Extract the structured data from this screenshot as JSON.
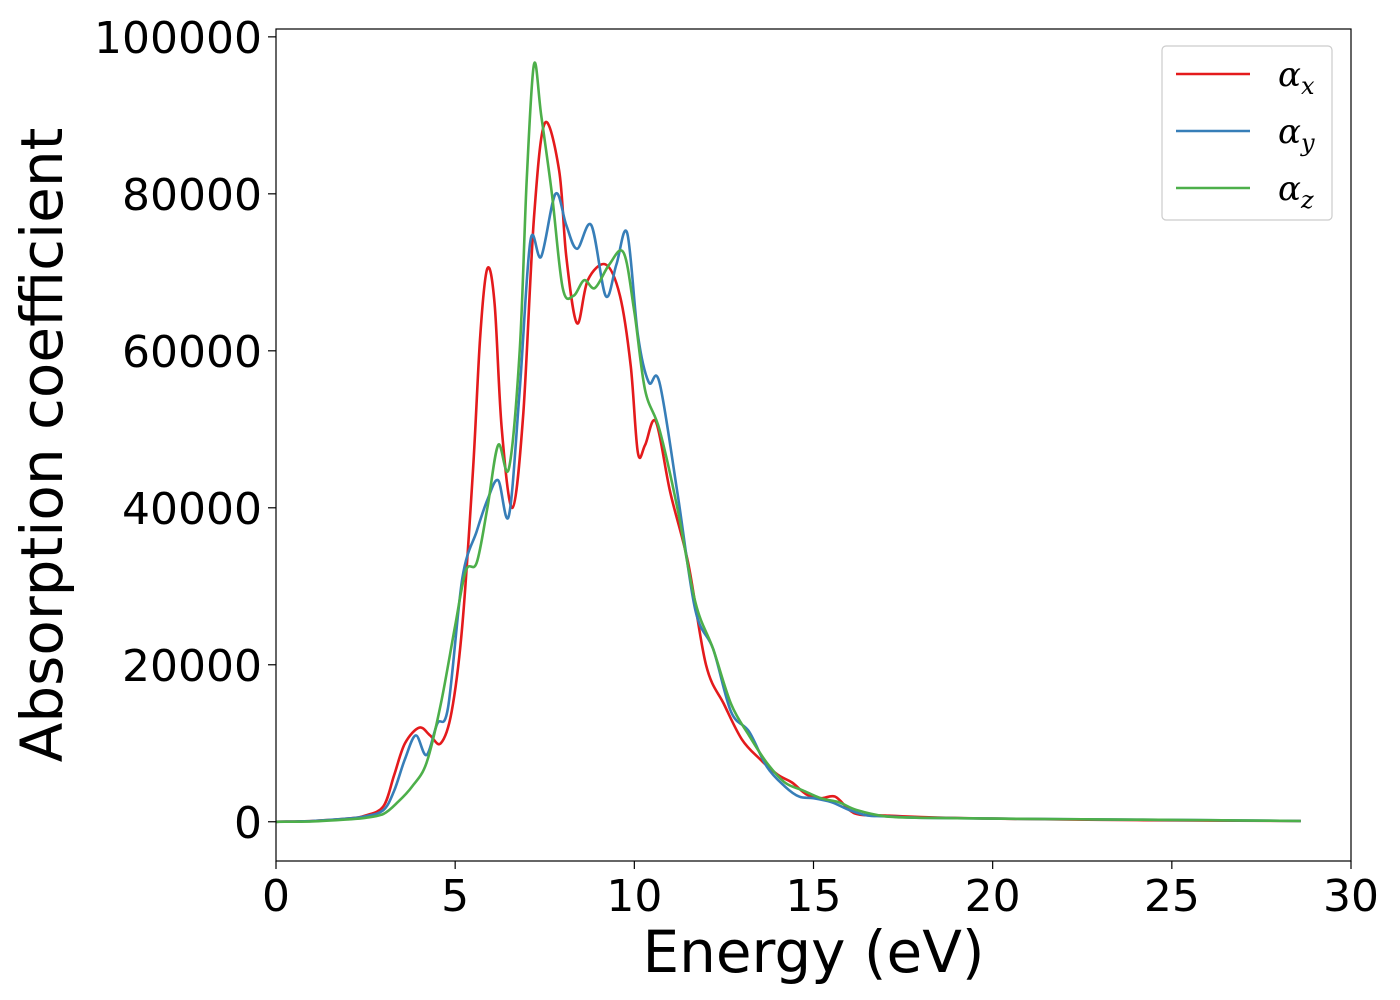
{
  "chart_data": {
    "type": "line",
    "xlabel": "Energy (eV)",
    "ylabel": "Absorption coefficient",
    "xlim": [
      0,
      30
    ],
    "ylim": [
      -5000,
      101000
    ],
    "xticks": [
      0,
      5,
      10,
      15,
      20,
      25,
      30
    ],
    "yticks": [
      0,
      20000,
      40000,
      60000,
      80000,
      100000
    ],
    "grid": false,
    "legend_position": "top-right",
    "series": [
      {
        "name": "α_x",
        "symbol": "α",
        "subscript": "x",
        "color": "#e41a1c",
        "x": [
          0,
          1,
          2,
          2.5,
          3.0,
          3.3,
          3.6,
          4.0,
          4.3,
          4.6,
          4.9,
          5.2,
          5.5,
          5.7,
          5.9,
          6.1,
          6.3,
          6.6,
          6.9,
          7.2,
          7.5,
          7.9,
          8.1,
          8.4,
          8.7,
          9.2,
          9.6,
          9.9,
          10.1,
          10.3,
          10.6,
          11.0,
          11.5,
          12.0,
          12.5,
          13.0,
          13.5,
          14.0,
          14.4,
          14.8,
          15.2,
          15.6,
          16.0,
          16.3,
          17.0,
          18.0,
          20.0,
          23.0,
          26.0,
          28.6
        ],
        "y": [
          0,
          100,
          400,
          800,
          2000,
          6000,
          10000,
          12000,
          11000,
          10000,
          14000,
          25000,
          45000,
          62000,
          70500,
          66000,
          50000,
          40000,
          52000,
          77000,
          89000,
          83000,
          72000,
          63500,
          69000,
          71000,
          67000,
          58000,
          47000,
          48000,
          51000,
          42000,
          33000,
          20000,
          15000,
          10500,
          8000,
          6000,
          5000,
          3500,
          3000,
          3200,
          1500,
          900,
          800,
          600,
          400,
          250,
          150,
          100
        ]
      },
      {
        "name": "α_y",
        "symbol": "α",
        "subscript": "y",
        "color": "#377eb8",
        "x": [
          0,
          1,
          2,
          2.5,
          3.0,
          3.3,
          3.6,
          3.9,
          4.2,
          4.5,
          4.8,
          5.2,
          5.6,
          5.9,
          6.2,
          6.5,
          6.8,
          7.1,
          7.4,
          7.8,
          8.1,
          8.4,
          8.8,
          9.2,
          9.5,
          9.8,
          10.1,
          10.4,
          10.7,
          11.2,
          11.7,
          12.2,
          12.7,
          13.2,
          13.7,
          14.2,
          14.6,
          15.0,
          15.5,
          16.0,
          16.5,
          17.0,
          18.0,
          20.0,
          23.0,
          26.0,
          28.6
        ],
        "y": [
          0,
          100,
          400,
          700,
          1500,
          4000,
          8000,
          11000,
          8500,
          12500,
          14500,
          31000,
          37000,
          41000,
          43500,
          39000,
          55000,
          74000,
          72000,
          80000,
          76000,
          73000,
          76000,
          67000,
          71000,
          75000,
          62000,
          56000,
          56000,
          42000,
          27000,
          22000,
          14000,
          11500,
          7000,
          4500,
          3200,
          3000,
          2500,
          1500,
          800,
          700,
          500,
          400,
          300,
          200,
          100
        ]
      },
      {
        "name": "α_z",
        "symbol": "α",
        "subscript": "z",
        "color": "#4daf4a",
        "x": [
          0,
          1,
          2,
          2.5,
          3.0,
          3.4,
          3.8,
          4.2,
          4.6,
          5.0,
          5.3,
          5.6,
          5.9,
          6.2,
          6.5,
          6.8,
          7.0,
          7.2,
          7.4,
          7.7,
          8.0,
          8.3,
          8.6,
          8.9,
          9.3,
          9.7,
          10.0,
          10.3,
          10.7,
          11.2,
          11.7,
          12.2,
          12.7,
          13.2,
          13.7,
          14.2,
          14.7,
          15.2,
          15.7,
          16.2,
          17.0,
          18.0,
          20.0,
          23.0,
          26.0,
          28.6
        ],
        "y": [
          0,
          50,
          300,
          500,
          1000,
          2500,
          4500,
          7500,
          15000,
          25000,
          32000,
          33000,
          40000,
          48000,
          45000,
          60000,
          82000,
          96500,
          90000,
          80000,
          68000,
          67000,
          69000,
          68000,
          71000,
          72500,
          65000,
          55000,
          50000,
          40000,
          28000,
          22000,
          15000,
          11000,
          7500,
          5000,
          4000,
          3000,
          2500,
          1500,
          700,
          500,
          400,
          300,
          200,
          100
        ]
      }
    ]
  }
}
